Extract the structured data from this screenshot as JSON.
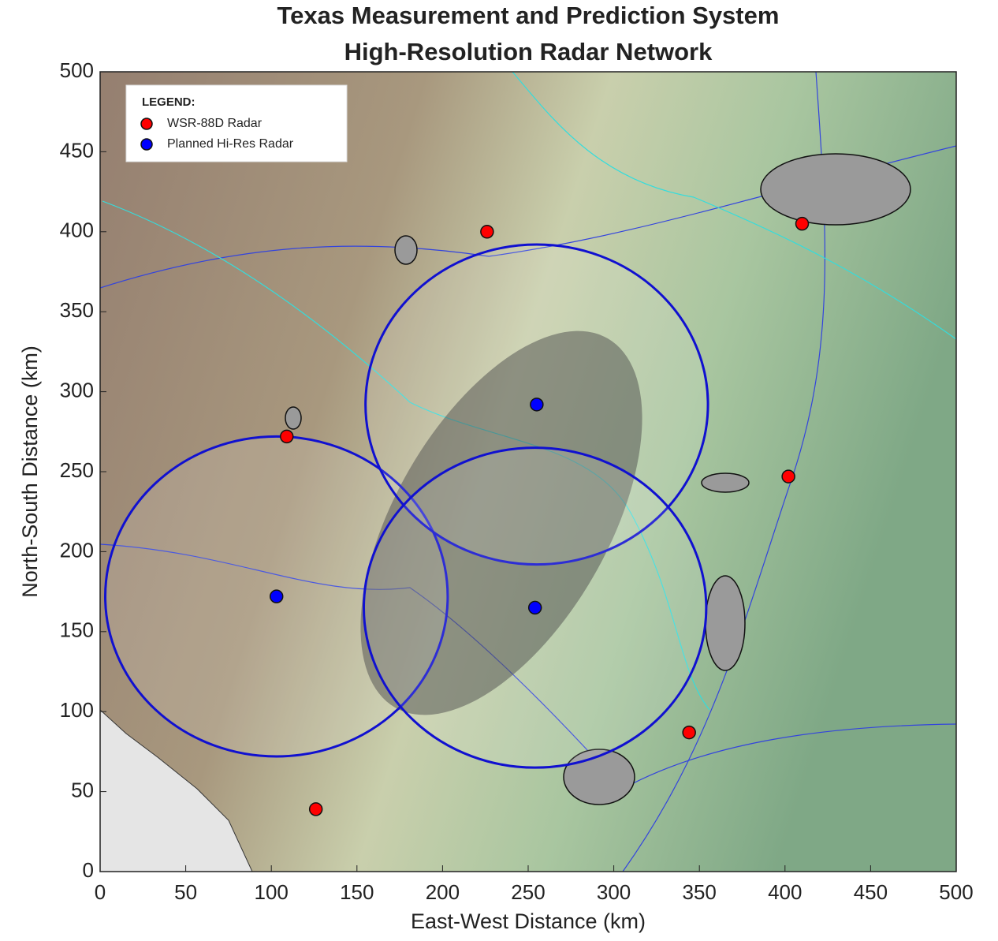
{
  "chart_data": {
    "type": "scatter",
    "title": [
      "Texas Measurement and Prediction System",
      "High-Resolution Radar Network"
    ],
    "x_label": "East-West Distance (km)",
    "y_label": "North-South Distance (km)",
    "xlim": [
      0,
      500
    ],
    "ylim": [
      0,
      500
    ],
    "xticks": [
      0,
      50,
      100,
      150,
      200,
      250,
      300,
      350,
      400,
      450,
      500
    ],
    "yticks": [
      0,
      50,
      100,
      150,
      200,
      250,
      300,
      350,
      400,
      450,
      500
    ],
    "legend_title": "LEGEND:",
    "legend": "upper left",
    "series": [
      {
        "name": "WSR-88D Radar",
        "color": "#ff0000",
        "x": [
          226,
          109,
          126,
          344,
          402,
          410
        ],
        "values": [
          400,
          272,
          39,
          87,
          247,
          405
        ]
      },
      {
        "name": "Planned Hi-Res Radar",
        "color": "#0000ff",
        "x": [
          103,
          255,
          254
        ],
        "values": [
          172,
          292,
          165
        ],
        "coverage_radius": [
          100,
          100,
          100
        ]
      }
    ]
  }
}
